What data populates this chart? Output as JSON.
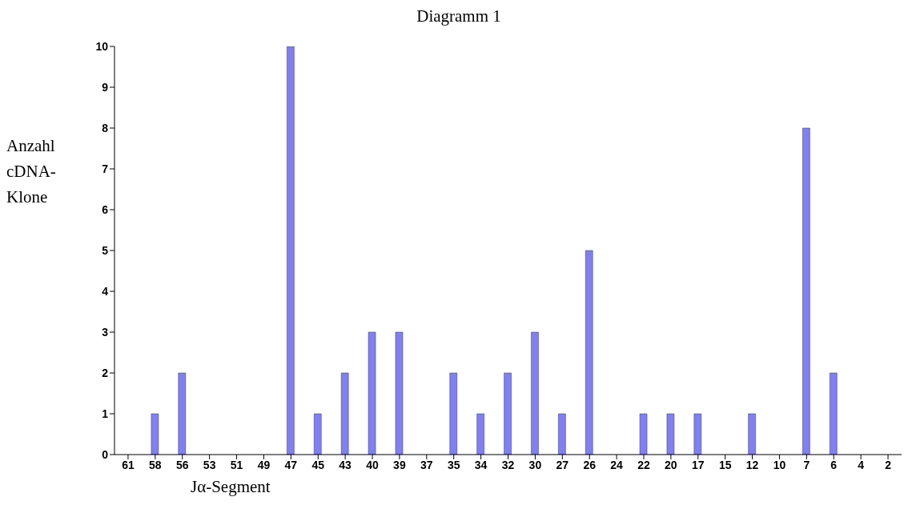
{
  "chart_data": {
    "type": "bar",
    "title": "Diagramm 1",
    "xlabel": "Jα-Segment",
    "ylabel": "Anzahl cDNA-Klone",
    "categories": [
      "61",
      "58",
      "56",
      "53",
      "51",
      "49",
      "47",
      "45",
      "43",
      "40",
      "39",
      "37",
      "35",
      "34",
      "32",
      "30",
      "27",
      "26",
      "24",
      "22",
      "20",
      "17",
      "15",
      "12",
      "10",
      "7",
      "6",
      "4",
      "2"
    ],
    "values": [
      0,
      1,
      2,
      0,
      0,
      0,
      10,
      1,
      2,
      3,
      3,
      0,
      2,
      1,
      2,
      3,
      1,
      5,
      0,
      1,
      1,
      1,
      0,
      1,
      0,
      8,
      2,
      0,
      0
    ],
    "color": "#8080f0",
    "ylim": [
      0,
      10
    ],
    "yticks": [
      0,
      1,
      2,
      3,
      4,
      5,
      6,
      7,
      8,
      9,
      10
    ],
    "grid": false,
    "legend": false
  }
}
